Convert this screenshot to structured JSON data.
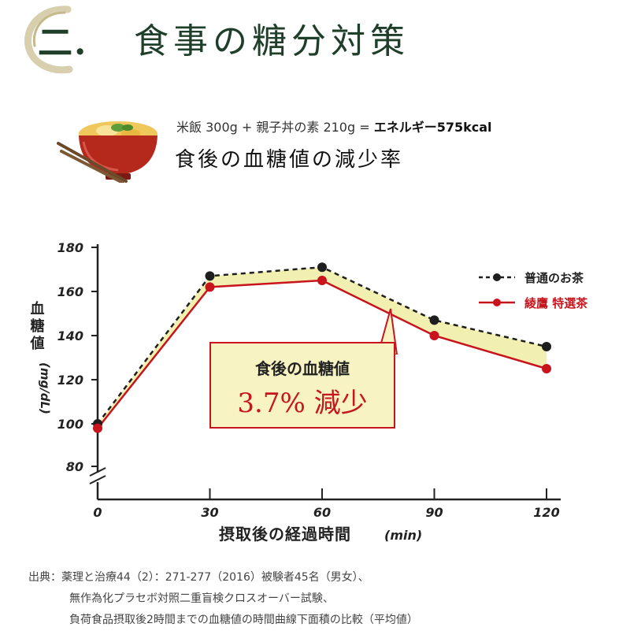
{
  "header": {
    "badge_numeral": "二.",
    "title": "食事の糖分対策"
  },
  "meal": {
    "formula": "米飯 300g + 親子丼の素 210g = ",
    "energy": "エネルギー575kcal",
    "subtitle": "食後の血糖値の減少率"
  },
  "callout": {
    "line1": "食後の血糖値",
    "line2": "3.7% 減少"
  },
  "source": {
    "line1": "出典：薬理と治療44（2）：271-277（2016）被験者45名（男女）、",
    "line2": "無作為化プラセボ対照二重盲検クロスオーバー試験、",
    "line3": "負荷食品摂取後2時間までの血糖値の時間曲線下面積の比較（平均値）"
  },
  "colors": {
    "accent_red": "#c8141c",
    "fill_yellow": "#f2f0b0",
    "title_green": "#1f3f2a"
  },
  "chart_data": {
    "type": "line",
    "x": [
      0,
      30,
      60,
      90,
      120
    ],
    "xlabel": "摂取後の経過時間",
    "xunit": "(min)",
    "ylabel": "血糖値",
    "yunit": "(mg/dL)",
    "ylim": [
      80,
      180
    ],
    "yticks": [
      80,
      100,
      120,
      140,
      160,
      180
    ],
    "xticks": [
      0,
      30,
      60,
      90,
      120
    ],
    "axis_break": true,
    "grid": false,
    "legend_position": "top-right",
    "series": [
      {
        "name": "普通のお茶",
        "values": [
          100,
          167,
          171,
          147,
          135
        ],
        "color": "#1e1e1e",
        "style": "dashed"
      },
      {
        "name": "綾鷹 特選茶",
        "values": [
          98,
          162,
          165,
          140,
          125
        ],
        "color": "#c8141c",
        "style": "solid"
      }
    ]
  }
}
